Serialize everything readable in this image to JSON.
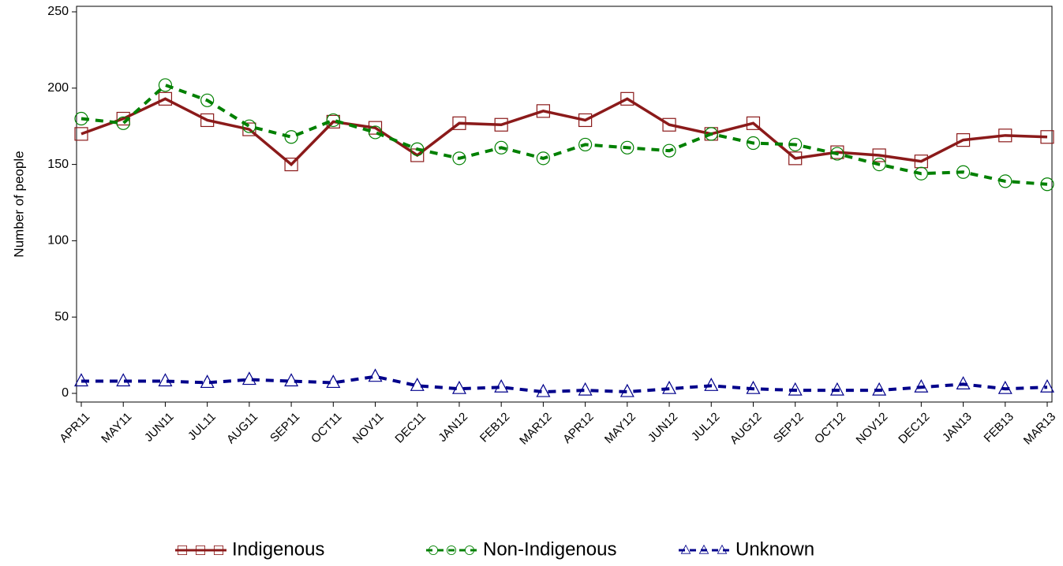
{
  "chart_data": {
    "type": "line",
    "y_label": "Number of people",
    "categories": [
      "APR11",
      "MAY11",
      "JUN11",
      "JUL11",
      "AUG11",
      "SEP11",
      "OCT11",
      "NOV11",
      "DEC11",
      "JAN12",
      "FEB12",
      "MAR12",
      "APR12",
      "MAY12",
      "JUN12",
      "JUL12",
      "AUG12",
      "SEP12",
      "OCT12",
      "NOV12",
      "DEC12",
      "JAN13",
      "FEB13",
      "MAR13"
    ],
    "series": [
      {
        "name": "Indigenous",
        "color": "#8b1a1a",
        "marker": "square",
        "dash": false,
        "values": [
          170,
          180,
          193,
          179,
          173,
          150,
          178,
          174,
          156,
          177,
          176,
          185,
          179,
          193,
          176,
          170,
          177,
          154,
          158,
          156,
          152,
          166,
          169,
          168
        ]
      },
      {
        "name": "Non-Indigenous",
        "color": "#008000",
        "marker": "circle",
        "dash": true,
        "values": [
          180,
          177,
          202,
          192,
          175,
          168,
          179,
          171,
          160,
          154,
          161,
          154,
          163,
          161,
          159,
          170,
          164,
          163,
          157,
          150,
          144,
          145,
          139,
          137
        ]
      },
      {
        "name": "Unknown",
        "color": "#00008b",
        "marker": "triangle",
        "dash": true,
        "values": [
          8,
          8,
          8,
          7,
          9,
          8,
          7,
          11,
          5,
          3,
          4,
          1,
          2,
          1,
          3,
          5,
          3,
          2,
          2,
          2,
          4,
          6,
          3,
          4
        ]
      }
    ],
    "ylim": [
      0,
      250
    ],
    "yticks": [
      0,
      50,
      100,
      150,
      200,
      250
    ]
  }
}
